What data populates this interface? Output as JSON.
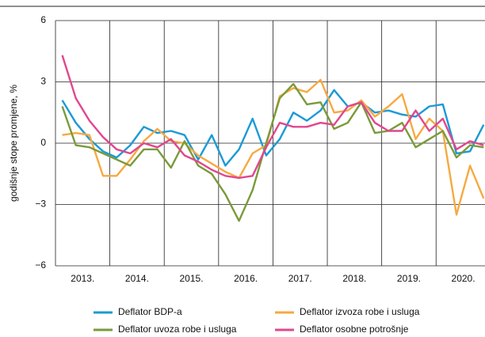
{
  "chart_data": {
    "type": "line",
    "y_label": "godišnje stope promjene, %",
    "x": [
      2013.125,
      2013.375,
      2013.625,
      2013.875,
      2014.125,
      2014.375,
      2014.625,
      2014.875,
      2015.125,
      2015.375,
      2015.625,
      2015.875,
      2016.125,
      2016.375,
      2016.625,
      2016.875,
      2017.125,
      2017.375,
      2017.625,
      2017.875,
      2018.125,
      2018.375,
      2018.625,
      2018.875,
      2019.125,
      2019.375,
      2019.625,
      2019.875,
      2020.125,
      2020.375,
      2020.625,
      2020.875
    ],
    "series": [
      {
        "name": "Deflator BDP-a",
        "color": "#1a9ad6",
        "values": [
          2.1,
          1.0,
          0.2,
          -0.4,
          -0.7,
          -0.1,
          0.8,
          0.5,
          0.6,
          0.4,
          -0.8,
          0.4,
          -1.1,
          -0.3,
          1.2,
          -0.6,
          0.2,
          1.5,
          1.1,
          1.6,
          2.6,
          1.8,
          2.0,
          1.5,
          1.6,
          1.4,
          1.3,
          1.8,
          1.9,
          -0.5,
          -0.4,
          0.9
        ]
      },
      {
        "name": "Deflator izvoza robe i usluga",
        "color": "#f7a941",
        "values": [
          0.4,
          0.5,
          0.4,
          -1.6,
          -1.6,
          -0.8,
          0.1,
          0.7,
          0.1,
          0.0,
          -0.6,
          -1.0,
          -1.4,
          -1.7,
          -0.5,
          -0.1,
          2.3,
          2.7,
          2.5,
          3.1,
          1.5,
          1.6,
          2.1,
          1.3,
          1.8,
          2.4,
          0.2,
          1.2,
          0.6,
          -3.5,
          -1.1,
          -2.7
        ]
      },
      {
        "name": "Deflator uvoza robe i usluga",
        "color": "#7a9a3a",
        "values": [
          1.8,
          -0.1,
          -0.2,
          -0.5,
          -0.8,
          -1.1,
          -0.3,
          -0.3,
          -1.2,
          0.1,
          -1.1,
          -1.5,
          -2.5,
          -3.8,
          -2.3,
          0.0,
          2.2,
          2.9,
          1.9,
          2.0,
          0.7,
          1.0,
          2.0,
          0.5,
          0.6,
          1.0,
          -0.2,
          0.2,
          0.6,
          -0.7,
          -0.1,
          -0.2
        ]
      },
      {
        "name": "Deflator osobne potrošnje",
        "color": "#e0478e",
        "values": [
          4.3,
          2.2,
          1.1,
          0.3,
          -0.3,
          -0.5,
          0.0,
          -0.2,
          0.2,
          -0.6,
          -0.9,
          -1.3,
          -1.6,
          -1.7,
          -1.6,
          -0.2,
          1.0,
          0.8,
          0.8,
          1.0,
          0.9,
          1.8,
          2.0,
          1.0,
          0.6,
          0.6,
          1.6,
          0.6,
          1.2,
          -0.3,
          0.1,
          -0.1
        ]
      }
    ],
    "xlim": [
      2013,
      2020.9
    ],
    "xticks": [
      {
        "value": 2013.5,
        "label": "2013."
      },
      {
        "value": 2014.5,
        "label": "2014."
      },
      {
        "value": 2015.5,
        "label": "2015."
      },
      {
        "value": 2016.5,
        "label": "2016."
      },
      {
        "value": 2017.5,
        "label": "2017."
      },
      {
        "value": 2018.5,
        "label": "2018."
      },
      {
        "value": 2019.5,
        "label": "2019."
      },
      {
        "value": 2020.5,
        "label": "2020."
      }
    ],
    "ylim": [
      -6,
      6
    ],
    "yticks": [
      6,
      3,
      0,
      {
        "value": -3,
        "label": "−3"
      },
      {
        "value": -6,
        "label": "−6"
      }
    ],
    "grid": true,
    "legend": "bottom"
  }
}
